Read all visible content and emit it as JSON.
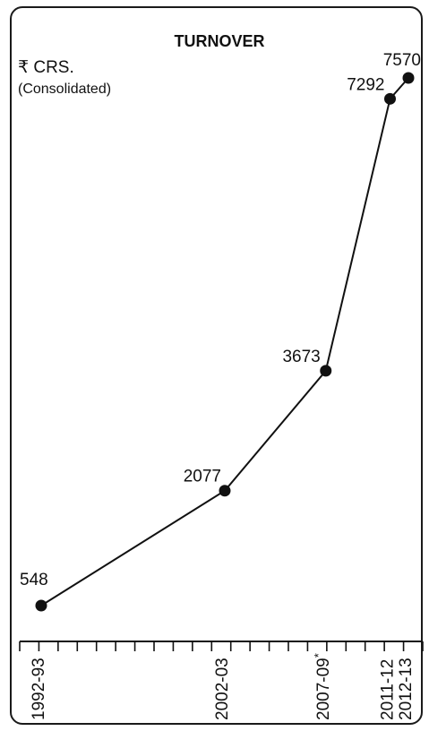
{
  "chart_data": {
    "type": "line",
    "title": "TURNOVER",
    "ylabel": "₹ CRS.",
    "ylabel_note": "(Consolidated)",
    "categories": [
      "1992-93",
      "2002-03",
      "2007-09*",
      "2011-12",
      "2012-13"
    ],
    "series": [
      {
        "values": [
          548,
          2077,
          3673,
          7292,
          7570
        ]
      }
    ],
    "data_labels": [
      "548",
      "2077",
      "3673",
      "7292",
      "7570"
    ],
    "x_start_year": 1992,
    "x_end_year": 2013,
    "ylim": [
      0,
      8000
    ],
    "grid": false,
    "line_color": "#111111",
    "marker_color": "#111111"
  }
}
